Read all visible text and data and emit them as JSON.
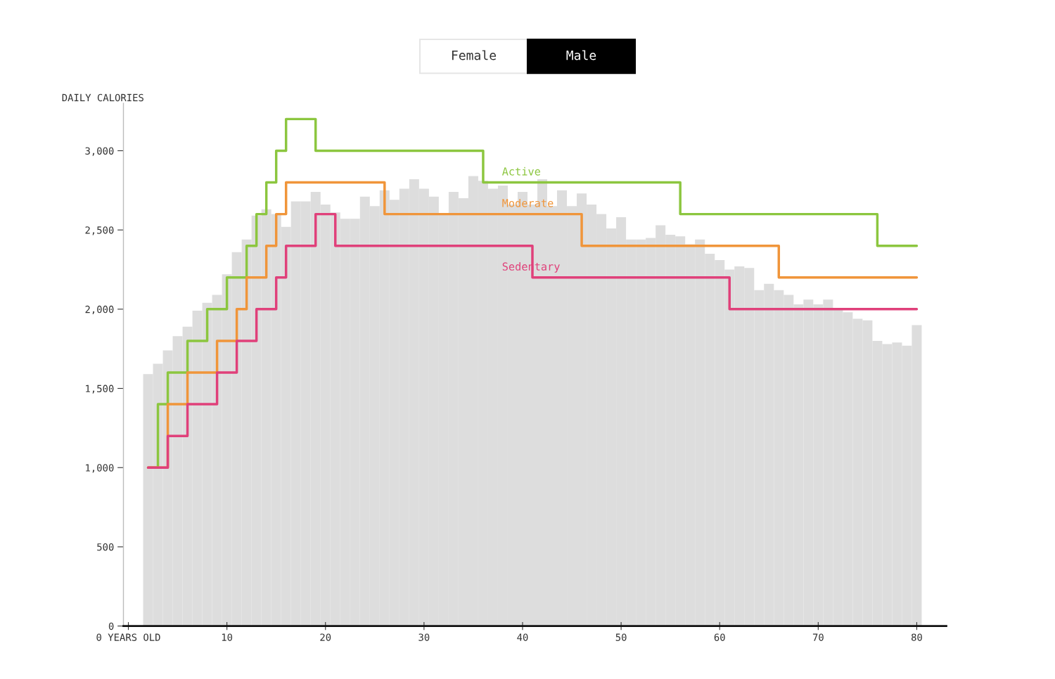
{
  "chart_data": {
    "type": "step",
    "ylabel": "DAILY CALORIES",
    "annotations": [
      "Female",
      "Male"
    ],
    "xlim": [
      -0.5,
      83
    ],
    "ylim": [
      0,
      3300
    ],
    "xticks": [
      {
        "value": 0,
        "label": "0 YEARS OLD"
      },
      10,
      20,
      30,
      40,
      50,
      60,
      70,
      80
    ],
    "yticks": [
      0,
      {
        "value": 500,
        "label": "500"
      },
      {
        "value": 1000,
        "label": "1,000"
      },
      {
        "value": 1500,
        "label": "1,500"
      },
      {
        "value": 2000,
        "label": "2,000"
      },
      {
        "value": 2500,
        "label": "2,500"
      },
      {
        "value": 3000,
        "label": "3,000"
      }
    ],
    "grid": false,
    "legend": false,
    "series": [
      {
        "type": "bar",
        "color": "#dddddd",
        "x": [
          2,
          3,
          4,
          5,
          6,
          7,
          8,
          9,
          10,
          11,
          12,
          13,
          14,
          15,
          16,
          17,
          18,
          19,
          20,
          21,
          22,
          23,
          24,
          25,
          26,
          27,
          28,
          29,
          30,
          31,
          32,
          33,
          34,
          35,
          36,
          37,
          38,
          39,
          40,
          41,
          42,
          43,
          44,
          45,
          46,
          47,
          48,
          49,
          50,
          51,
          52,
          53,
          54,
          55,
          56,
          57,
          58,
          59,
          60,
          61,
          62,
          63,
          64,
          65,
          66,
          67,
          68,
          69,
          70,
          71,
          72,
          73,
          74,
          75,
          76,
          77,
          78,
          79,
          80
        ],
        "values": [
          1590,
          1655,
          1740,
          1830,
          1890,
          1990,
          2040,
          2090,
          2220,
          2360,
          2440,
          2590,
          2630,
          2600,
          2520,
          2680,
          2680,
          2740,
          2660,
          2610,
          2570,
          2570,
          2710,
          2650,
          2750,
          2690,
          2760,
          2820,
          2760,
          2710,
          2600,
          2740,
          2700,
          2840,
          2810,
          2760,
          2780,
          2660,
          2740,
          2660,
          2820,
          2650,
          2750,
          2650,
          2730,
          2660,
          2600,
          2510,
          2580,
          2440,
          2440,
          2450,
          2530,
          2470,
          2460,
          2410,
          2440,
          2350,
          2310,
          2250,
          2270,
          2260,
          2120,
          2160,
          2120,
          2090,
          2030,
          2060,
          2030,
          2060,
          2000,
          1980,
          1940,
          1930,
          1800,
          1780,
          1790,
          1770,
          1900
        ]
      },
      {
        "name": "Active",
        "color": "#8cc63f",
        "x": [
          2,
          3,
          4,
          6,
          8,
          10,
          12,
          13,
          14,
          15,
          16,
          19,
          36,
          56,
          76,
          80
        ],
        "values": [
          1000,
          1400,
          1600,
          1800,
          2000,
          2200,
          2400,
          2600,
          2800,
          3000,
          3200,
          3000,
          2800,
          2600,
          2400,
          2400
        ]
      },
      {
        "name": "Moderate",
        "color": "#f0953a",
        "x": [
          2,
          4,
          6,
          9,
          11,
          12,
          14,
          15,
          16,
          26,
          46,
          66,
          80
        ],
        "values": [
          1000,
          1400,
          1600,
          1800,
          2000,
          2200,
          2400,
          2600,
          2800,
          2600,
          2400,
          2200,
          2200
        ]
      },
      {
        "name": "Sedentary",
        "color": "#e0407a",
        "x": [
          2,
          4,
          6,
          9,
          11,
          13,
          15,
          16,
          19,
          21,
          41,
          61,
          80
        ],
        "values": [
          1000,
          1200,
          1400,
          1600,
          1800,
          2000,
          2200,
          2400,
          2600,
          2400,
          2200,
          2000,
          2000
        ]
      }
    ]
  }
}
